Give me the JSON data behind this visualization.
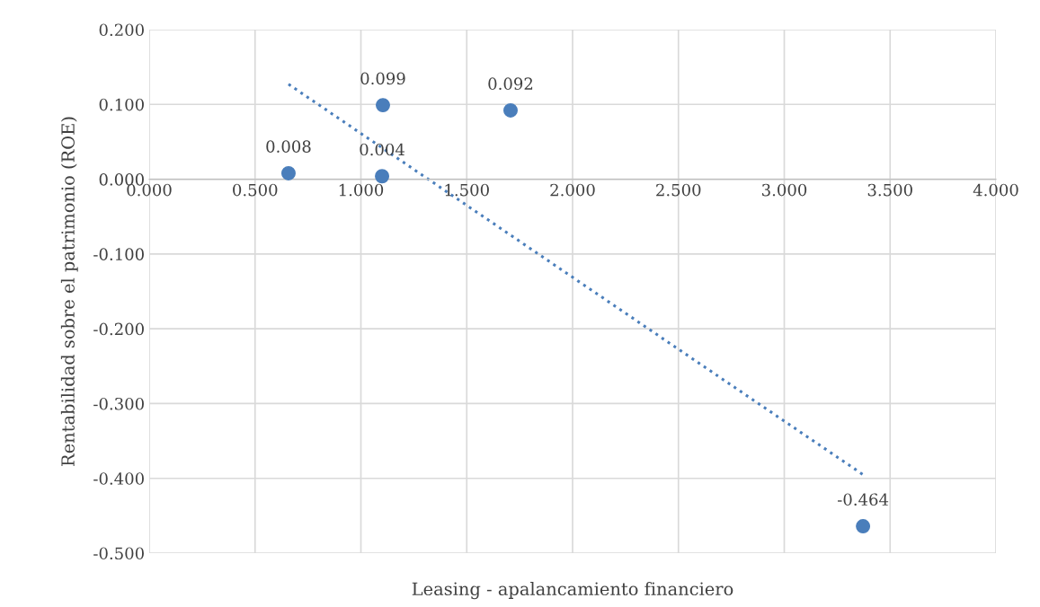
{
  "chart_data": {
    "type": "scatter",
    "xlabel": "Leasing - apalancamiento financiero",
    "ylabel": "Rentabilidad sobre el patrimonio (ROE)",
    "series": [
      {
        "color": "#4a7ebb",
        "marker": "circle",
        "data_labels": true,
        "x": [
          0.658,
          1.104,
          1.1,
          1.707,
          3.372
        ],
        "values": [
          0.008,
          0.099,
          0.004,
          0.092,
          -0.464
        ]
      },
      {
        "type": "line",
        "color": "#4a7ebb",
        "marker": "none",
        "line_style": "dotted",
        "x": [
          0.658,
          3.372
        ],
        "values": [
          0.127,
          -0.395
        ]
      }
    ],
    "xlim": [
      0,
      4
    ],
    "ylim": [
      -0.5,
      0.2
    ],
    "xticks": [
      {
        "value": 0,
        "label": "0.000"
      },
      {
        "value": 0.5,
        "label": "0.500"
      },
      {
        "value": 1,
        "label": "1.000"
      },
      {
        "value": 1.5,
        "label": "1.500"
      },
      {
        "value": 2,
        "label": "2.000"
      },
      {
        "value": 2.5,
        "label": "2.500"
      },
      {
        "value": 3,
        "label": "3.000"
      },
      {
        "value": 3.5,
        "label": "3.500"
      },
      {
        "value": 4,
        "label": "4.000"
      }
    ],
    "yticks": [
      {
        "value": 0.2,
        "label": "0.200"
      },
      {
        "value": 0.1,
        "label": "0.100"
      },
      {
        "value": 0,
        "label": "0.000"
      },
      {
        "value": -0.1,
        "label": "-0.100"
      },
      {
        "value": -0.2,
        "label": "-0.200"
      },
      {
        "value": -0.3,
        "label": "-0.300"
      },
      {
        "value": -0.4,
        "label": "-0.400"
      },
      {
        "value": -0.5,
        "label": "-0.500"
      }
    ],
    "grid": true,
    "legend": false
  }
}
